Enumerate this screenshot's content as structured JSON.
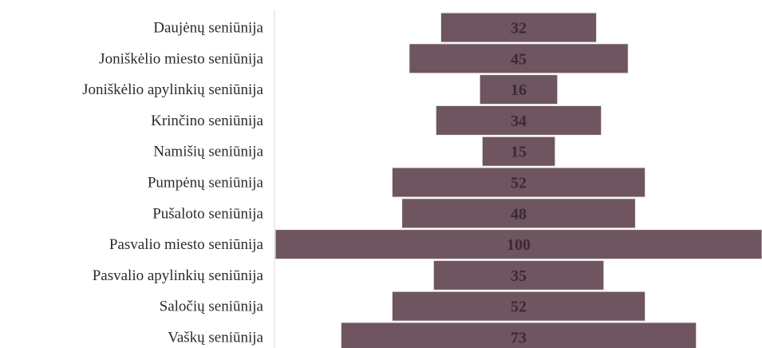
{
  "chart_data": {
    "type": "bar",
    "orientation": "horizontal-centered",
    "categories": [
      "Daujėnų seniūnija",
      "Joniškėlio miesto seniūnija",
      "Joniškėlio apylinkių seniūnija",
      "Krinčino seniūnija",
      "Namišių seniūnija",
      "Pumpėnų seniūnija",
      "Pušaloto seniūnija",
      "Pasvalio miesto seniūnija",
      "Pasvalio apylinkių seniūnija",
      "Saločių seniūnija",
      "Vaškų seniūnija"
    ],
    "values": [
      32,
      45,
      16,
      34,
      15,
      52,
      48,
      100,
      35,
      52,
      73
    ],
    "xlim": [
      0,
      100
    ],
    "grid": false,
    "legend": "none",
    "colors": {
      "bar": "#6e5560",
      "bar_border": "#f2eef0",
      "value_text": "#3b2a32",
      "label_text": "#2b2b2b",
      "axis": "#d9d9d9"
    }
  }
}
